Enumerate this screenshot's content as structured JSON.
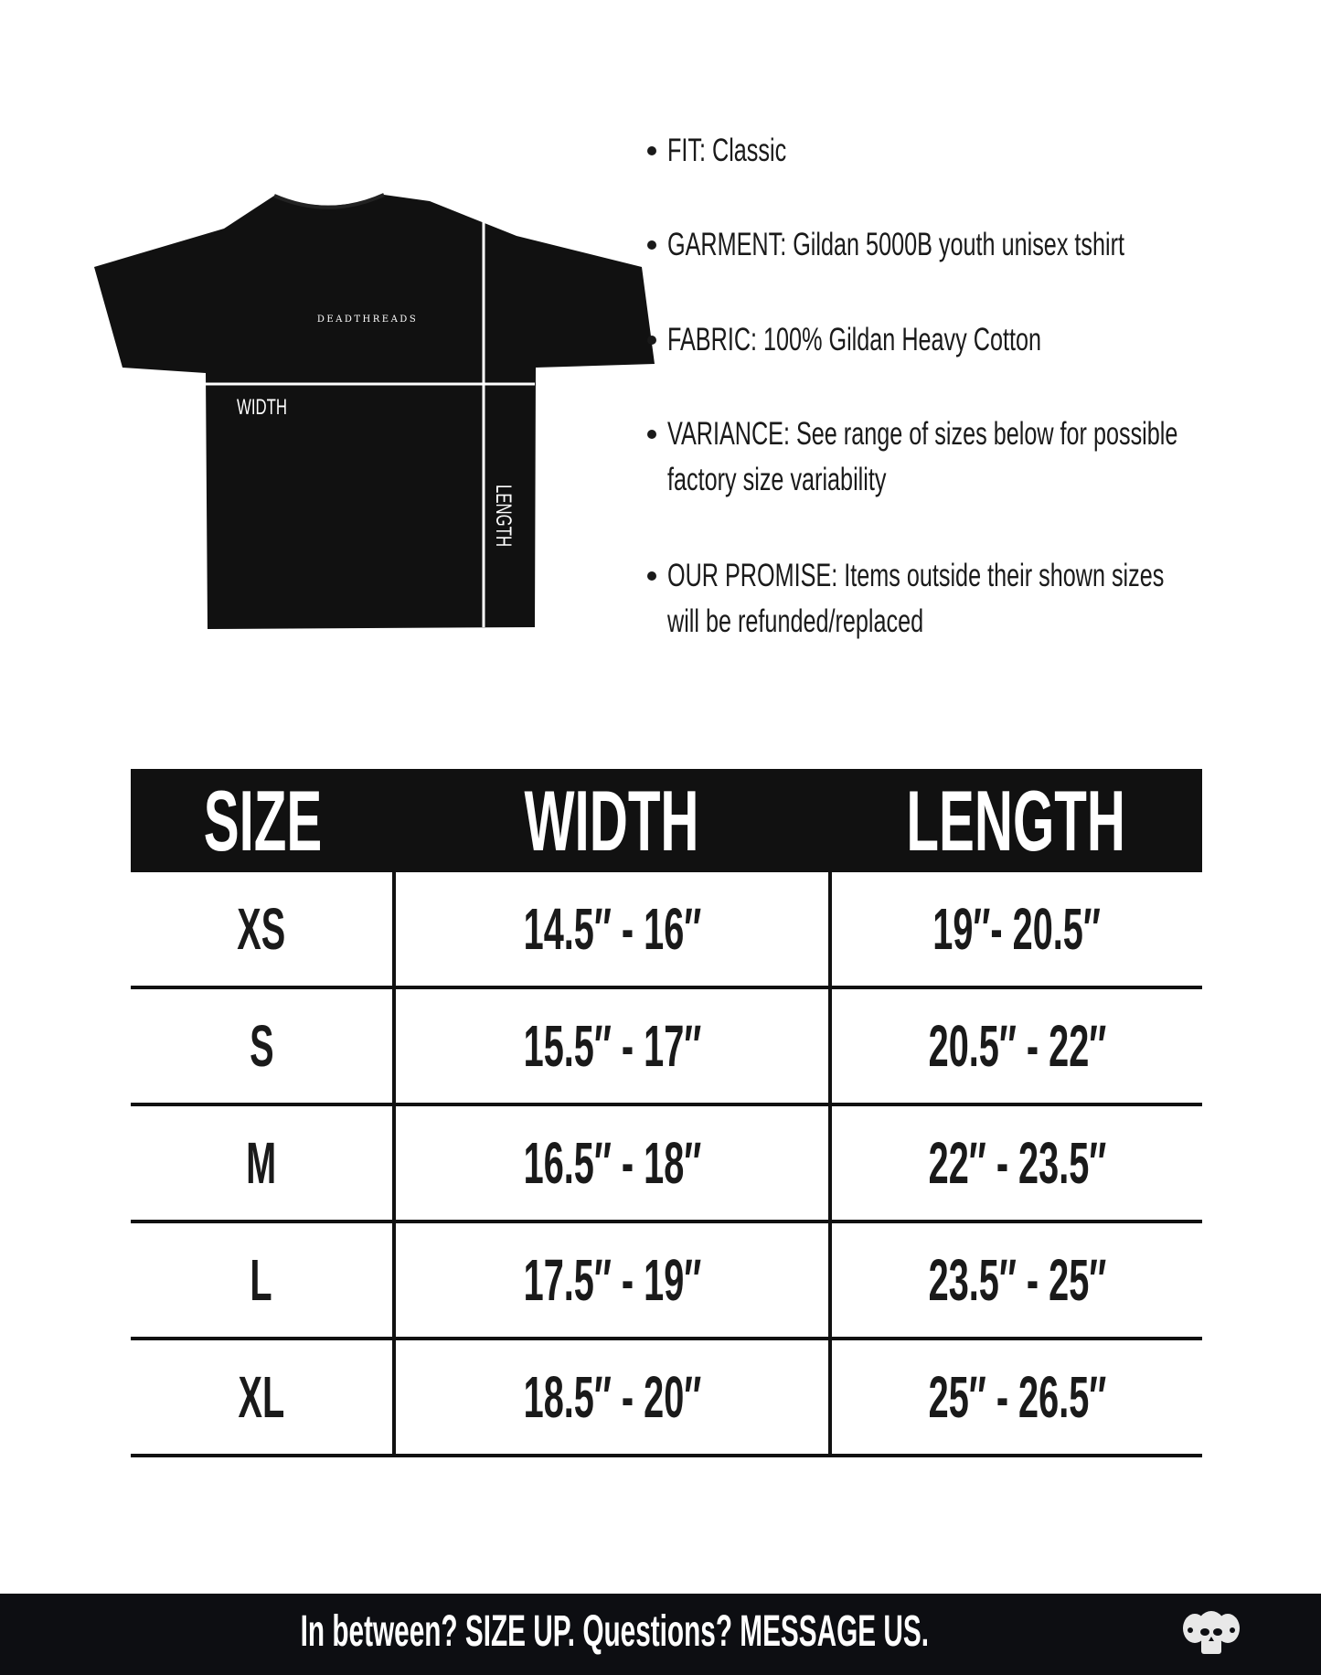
{
  "shirt": {
    "brand_print": "DEADTHREADS",
    "width_label": "WIDTH",
    "length_label": "LENGTH",
    "color": "#111111"
  },
  "bullets": [
    {
      "lines": [
        "FIT: Classic"
      ]
    },
    {
      "lines": [
        "GARMENT: Gildan 5000B youth unisex tshirt"
      ]
    },
    {
      "lines": [
        "FABRIC: 100% Gildan Heavy Cotton"
      ]
    },
    {
      "lines": [
        "VARIANCE: See range of sizes below for possible",
        "factory size variability"
      ]
    },
    {
      "lines": [
        "OUR PROMISE: Items outside their shown sizes",
        "will be refunded/replaced"
      ]
    }
  ],
  "table": {
    "headers": [
      "SIZE",
      "WIDTH",
      "LENGTH"
    ],
    "rows": [
      [
        "XS",
        "14.5″ - 16″",
        "19″- 20.5″"
      ],
      [
        "S",
        "15.5″ - 17″",
        "20.5″ - 22″"
      ],
      [
        "M",
        "16.5″ - 18″",
        "22″ - 23.5″"
      ],
      [
        "L",
        "17.5″ - 19″",
        "23.5″ - 25″"
      ],
      [
        "XL",
        "18.5″ - 20″",
        "25″ - 26.5″"
      ]
    ]
  },
  "footer": {
    "text": "In between? SIZE UP. Questions? MESSAGE US.",
    "logo_icon": "three-skulls-icon"
  }
}
